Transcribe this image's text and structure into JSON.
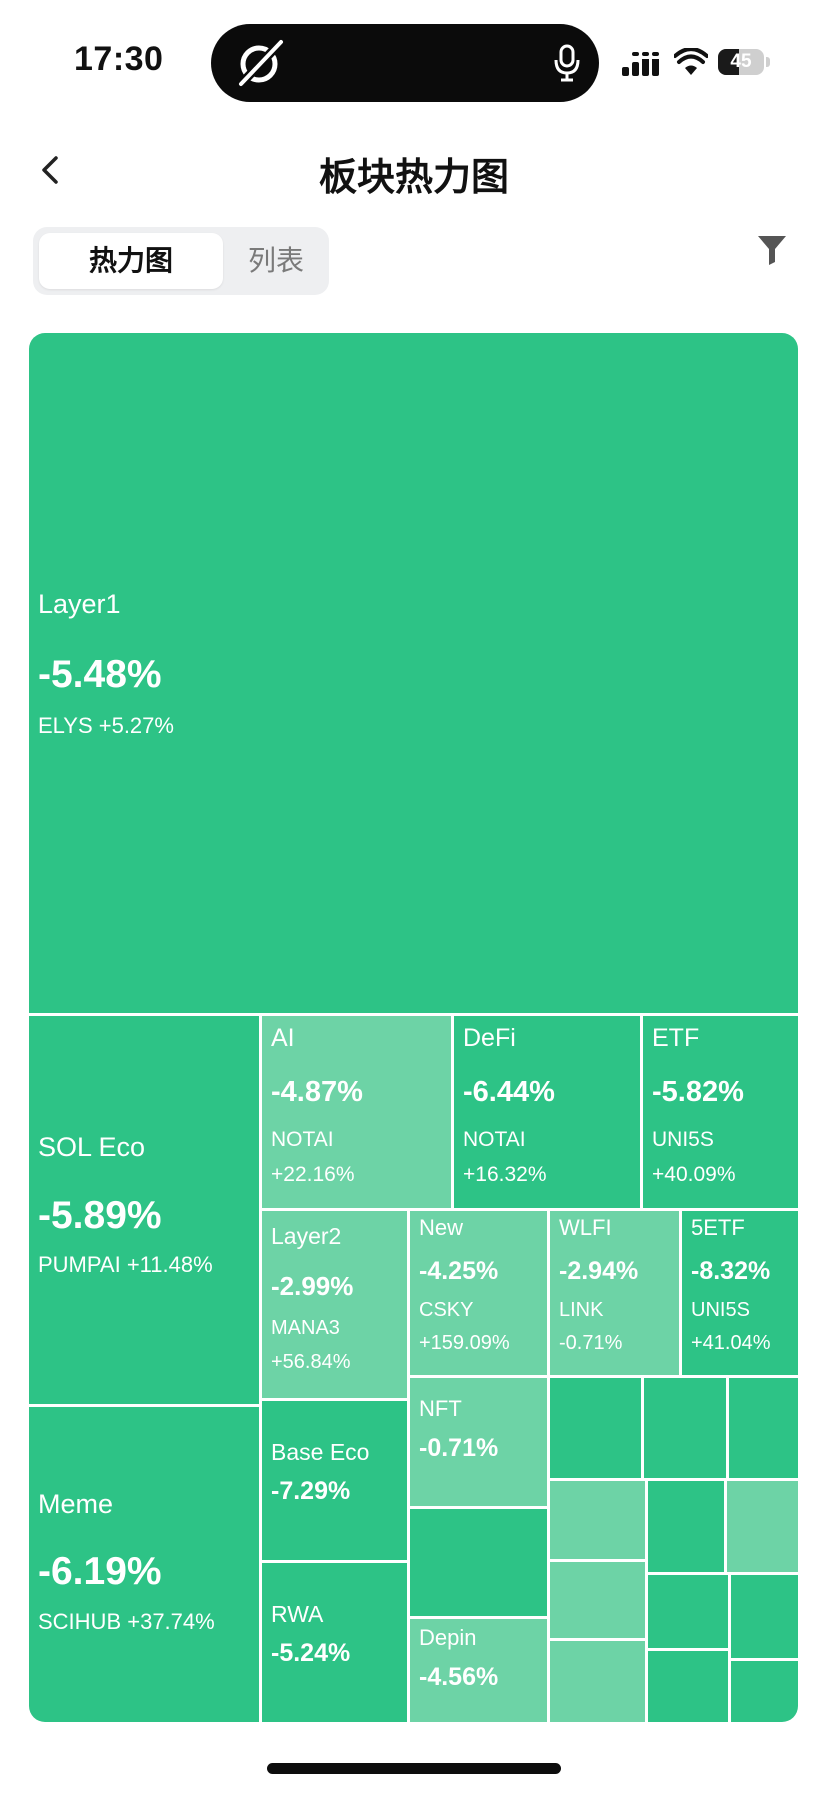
{
  "status_bar": {
    "time": "17:30",
    "battery": "45",
    "battery_level": 0.45
  },
  "header": {
    "title": "板块热力图"
  },
  "tabs": [
    {
      "label": "热力图",
      "active": true
    },
    {
      "label": "列表",
      "active": false
    }
  ],
  "colors": {
    "dark_green": "#2dc386",
    "light_green": "#6dd3a6"
  },
  "heatmap": {
    "sectors": [
      {
        "name": "Layer1",
        "change": "-5.48%",
        "top_coin": "ELYS +5.27%"
      },
      {
        "name": "SOL Eco",
        "change": "-5.89%",
        "top_coin": "PUMPAI +11.48%"
      },
      {
        "name": "Meme",
        "change": "-6.19%",
        "top_coin": "SCIHUB +37.74%"
      },
      {
        "name": "AI",
        "change": "-4.87%",
        "coin": "NOTAI",
        "coin_change": "+22.16%"
      },
      {
        "name": "DeFi",
        "change": "-6.44%",
        "coin": "NOTAI",
        "coin_change": "+16.32%"
      },
      {
        "name": "ETF",
        "change": "-5.82%",
        "coin": "UNI5S",
        "coin_change": "+40.09%"
      },
      {
        "name": "Layer2",
        "change": "-2.99%",
        "coin": "MANA3",
        "coin_change": "+56.84%"
      },
      {
        "name": "New",
        "change": "-4.25%",
        "coin": "CSKY",
        "coin_change": "+159.09%"
      },
      {
        "name": "WLFI",
        "change": "-2.94%",
        "coin": "LINK",
        "coin_change": "-0.71%"
      },
      {
        "name": "5ETF",
        "change": "-8.32%",
        "coin": "UNI5S",
        "coin_change": "+41.04%"
      },
      {
        "name": "NFT",
        "change": "-0.71%"
      },
      {
        "name": "Base Eco",
        "change": "-7.29%"
      },
      {
        "name": "RWA",
        "change": "-5.24%"
      },
      {
        "name": "Depin",
        "change": "-4.56%"
      }
    ]
  }
}
